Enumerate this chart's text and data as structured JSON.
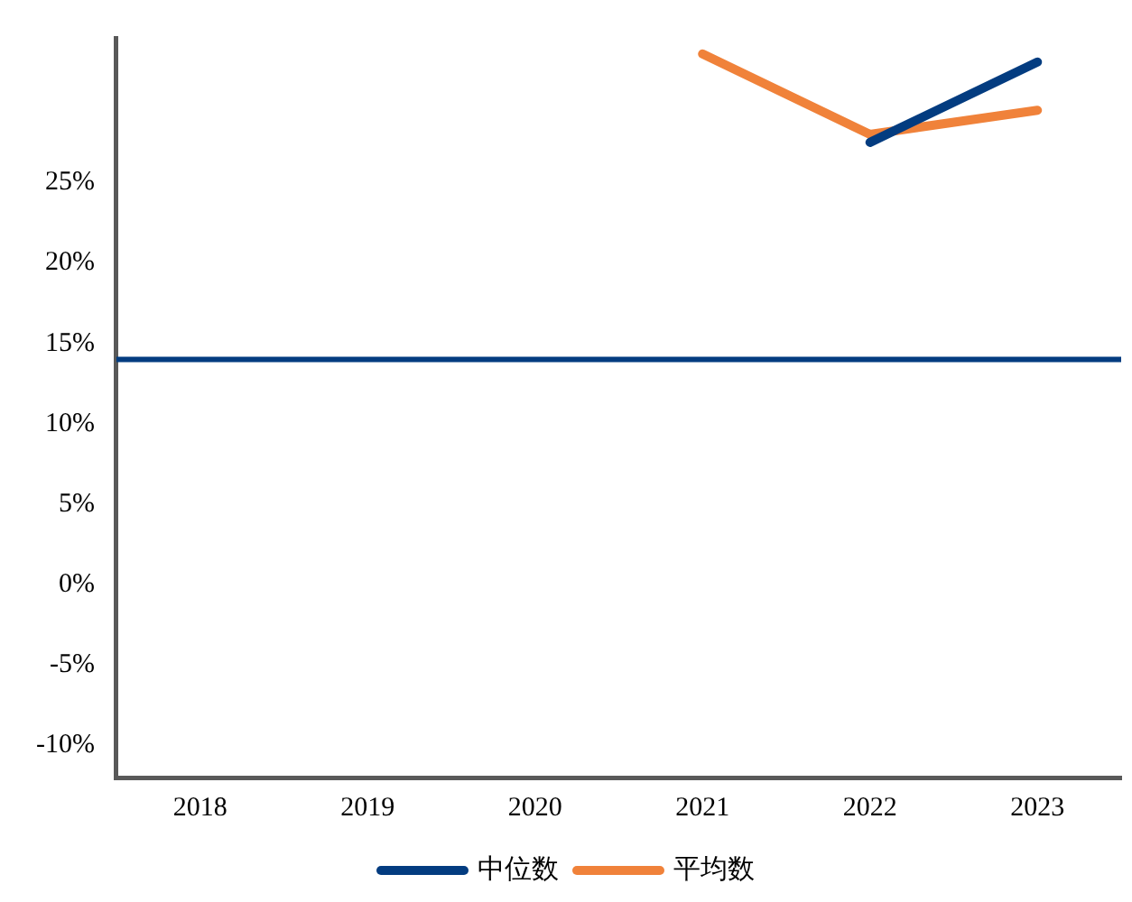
{
  "chart_data": {
    "type": "line",
    "categories": [
      "2018",
      "2019",
      "2020",
      "2021",
      "2022",
      "2023"
    ],
    "series": [
      {
        "name": "中位数",
        "color": "#033c80",
        "values": [
          null,
          null,
          null,
          null,
          27.5,
          32.5
        ]
      },
      {
        "name": "平均数",
        "color": "#f0823a",
        "values": [
          null,
          null,
          null,
          33,
          28,
          29.5
        ]
      }
    ],
    "ylim": [
      -12,
      34
    ],
    "yticks": [
      {
        "value": -10,
        "label": "-10%"
      },
      {
        "value": -5,
        "label": "-5%"
      },
      {
        "value": 0,
        "label": "0%"
      },
      {
        "value": 5,
        "label": "5%"
      },
      {
        "value": 10,
        "label": "10%"
      },
      {
        "value": 15,
        "label": "15%"
      },
      {
        "value": 20,
        "label": "20%"
      },
      {
        "value": 25,
        "label": "25%"
      }
    ],
    "ref_lines": [
      {
        "axis": "y",
        "value": 14,
        "color": "#033c80"
      }
    ],
    "legend": "bottom",
    "marker": "none",
    "line_style": "solid"
  }
}
